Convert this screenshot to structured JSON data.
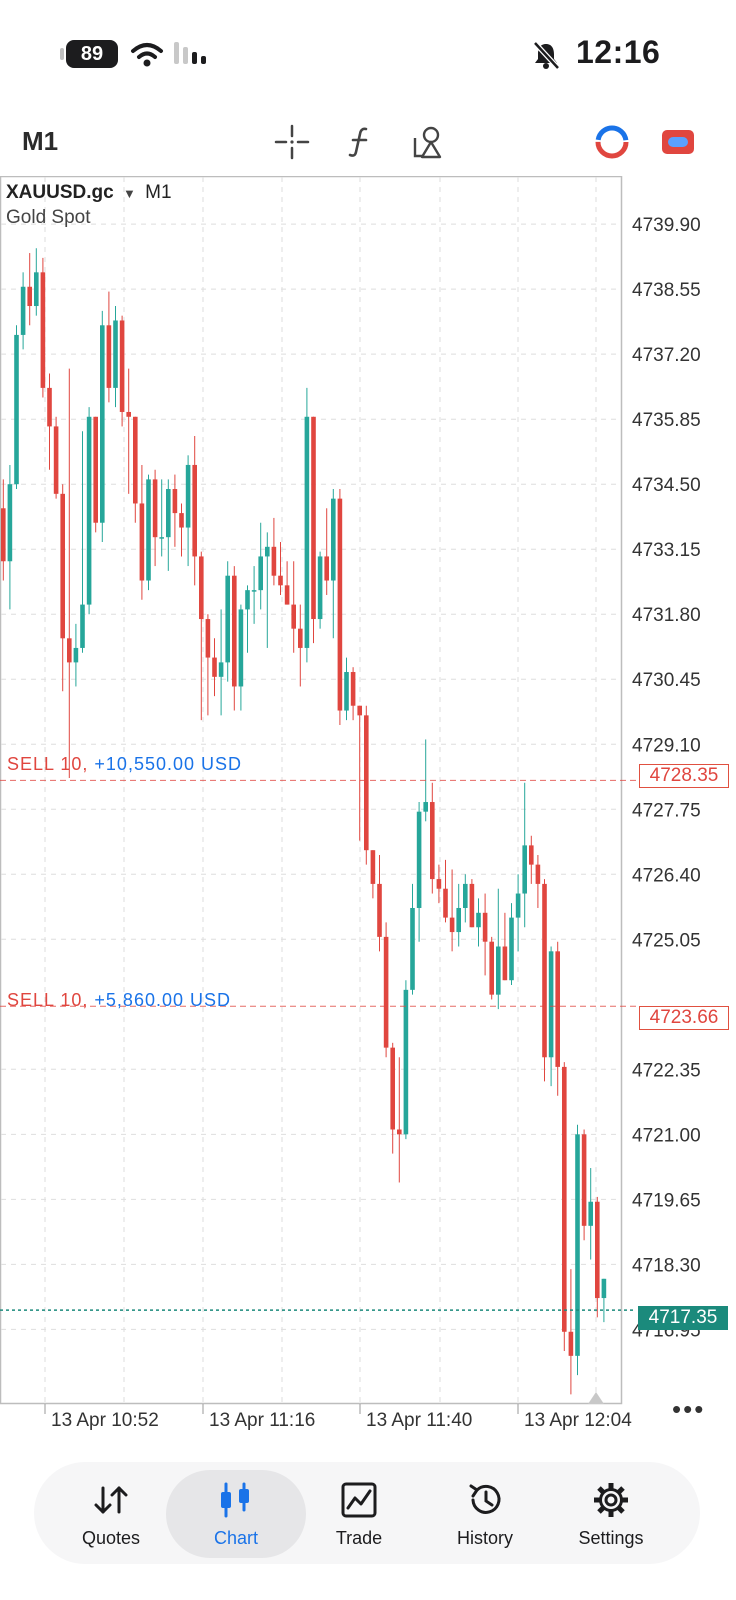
{
  "status_bar": {
    "battery": "89",
    "time": "12:16",
    "icons": [
      "wifi-icon",
      "cellular-signal-icon",
      "bell-muted-icon"
    ]
  },
  "toolbar": {
    "timeframe": "M1",
    "icons": [
      "crosshair-icon",
      "indicators-icon",
      "objects-icon",
      "app-logo-icon",
      "toggle-icon"
    ]
  },
  "chart": {
    "symbol": "XAUUSD.gc",
    "timeframe": "M1",
    "description": "Gold Spot",
    "colors": {
      "bull": "#26a69a",
      "bear": "#e0463f",
      "grid": "#dedede",
      "current": "#1b8a7c",
      "level": "#e0463f"
    },
    "current_price": "4717.35",
    "more_label": "•••"
  },
  "positions": [
    {
      "side": "SELL 10,",
      "pl": "+10,550.00 USD",
      "price": "4728.35"
    },
    {
      "side": "SELL 10,",
      "pl": "+5,860.00 USD",
      "price": "4723.66"
    }
  ],
  "chart_data": {
    "type": "candlestick",
    "y_ticks": [
      "4739.90",
      "4738.55",
      "4737.20",
      "4735.85",
      "4734.50",
      "4733.15",
      "4731.80",
      "4730.45",
      "4729.10",
      "4727.75",
      "4726.40",
      "4725.05",
      "4722.35",
      "4721.00",
      "4719.65",
      "4718.30",
      "4716.95"
    ],
    "x_ticks": [
      "13 Apr 10:52",
      "13 Apr 11:16",
      "13 Apr 11:40",
      "13 Apr 12:04"
    ],
    "ylim": [
      4715.4,
      4740.9
    ],
    "candles": [
      [
        4734.0,
        4734.6,
        4732.5,
        4732.9
      ],
      [
        4732.9,
        4734.9,
        4731.9,
        4734.5
      ],
      [
        4734.5,
        4737.8,
        4734.4,
        4737.6
      ],
      [
        4737.6,
        4738.9,
        4737.3,
        4738.6
      ],
      [
        4738.6,
        4739.3,
        4737.8,
        4738.2
      ],
      [
        4738.2,
        4739.4,
        4738.0,
        4738.9
      ],
      [
        4738.9,
        4739.2,
        4736.3,
        4736.5
      ],
      [
        4736.5,
        4736.8,
        4734.8,
        4735.7
      ],
      [
        4735.7,
        4735.9,
        4734.2,
        4734.3
      ],
      [
        4734.3,
        4734.5,
        4730.2,
        4731.3
      ],
      [
        4731.3,
        4736.9,
        4728.4,
        4730.8
      ],
      [
        4730.8,
        4731.6,
        4730.3,
        4731.1
      ],
      [
        4731.1,
        4735.6,
        4731.0,
        4732.0
      ],
      [
        4732.0,
        4736.1,
        4731.8,
        4735.9
      ],
      [
        4735.9,
        4735.9,
        4733.5,
        4733.7
      ],
      [
        4733.7,
        4738.1,
        4733.3,
        4737.8
      ],
      [
        4737.8,
        4738.5,
        4736.2,
        4736.5
      ],
      [
        4736.5,
        4738.2,
        4736.1,
        4737.9
      ],
      [
        4737.9,
        4738.0,
        4735.7,
        4736.0
      ],
      [
        4736.0,
        4736.9,
        4734.3,
        4735.9
      ],
      [
        4735.9,
        4735.9,
        4733.7,
        4734.1
      ],
      [
        4734.1,
        4734.9,
        4732.1,
        4732.5
      ],
      [
        4732.5,
        4734.7,
        4732.3,
        4734.6
      ],
      [
        4734.6,
        4734.8,
        4732.8,
        4733.4
      ],
      [
        4733.4,
        4734.6,
        4733.0,
        4733.4
      ],
      [
        4733.4,
        4734.6,
        4732.7,
        4734.4
      ],
      [
        4734.4,
        4734.7,
        4733.2,
        4733.9
      ],
      [
        4733.9,
        4734.1,
        4733.0,
        4733.6
      ],
      [
        4733.6,
        4735.1,
        4732.8,
        4734.9
      ],
      [
        4734.9,
        4735.5,
        4732.4,
        4733.0
      ],
      [
        4733.0,
        4733.1,
        4729.6,
        4731.7
      ],
      [
        4731.7,
        4731.8,
        4729.7,
        4730.9
      ],
      [
        4730.9,
        4731.3,
        4730.1,
        4730.5
      ],
      [
        4730.5,
        4731.9,
        4729.7,
        4730.8
      ],
      [
        4730.8,
        4732.9,
        4730.4,
        4732.6
      ],
      [
        4732.6,
        4732.8,
        4729.8,
        4730.3
      ],
      [
        4730.3,
        4732.0,
        4729.8,
        4731.9
      ],
      [
        4731.9,
        4732.4,
        4731.0,
        4732.3
      ],
      [
        4732.3,
        4732.8,
        4731.6,
        4732.3
      ],
      [
        4732.3,
        4733.7,
        4731.9,
        4733.0
      ],
      [
        4733.0,
        4733.5,
        4731.1,
        4733.2
      ],
      [
        4733.2,
        4733.8,
        4732.4,
        4732.6
      ],
      [
        4732.6,
        4733.3,
        4732.2,
        4732.4
      ],
      [
        4732.4,
        4732.9,
        4732.0,
        4732.0
      ],
      [
        4732.0,
        4732.9,
        4731.0,
        4731.5
      ],
      [
        4731.5,
        4732.0,
        4730.3,
        4731.1
      ],
      [
        4731.1,
        4736.5,
        4730.8,
        4735.9
      ],
      [
        4735.9,
        4735.9,
        4731.2,
        4731.7
      ],
      [
        4731.7,
        4733.1,
        4731.5,
        4733.0
      ],
      [
        4733.0,
        4734.0,
        4732.2,
        4732.5
      ],
      [
        4732.5,
        4734.4,
        4731.3,
        4734.2
      ],
      [
        4734.2,
        4734.4,
        4729.5,
        4729.8
      ],
      [
        4729.8,
        4730.9,
        4729.6,
        4730.6
      ],
      [
        4730.6,
        4730.7,
        4729.6,
        4729.9
      ],
      [
        4729.9,
        4729.9,
        4727.1,
        4729.7
      ],
      [
        4729.7,
        4729.9,
        4726.6,
        4726.9
      ],
      [
        4726.9,
        4726.9,
        4725.9,
        4726.2
      ],
      [
        4726.2,
        4726.8,
        4724.8,
        4725.1
      ],
      [
        4725.1,
        4725.4,
        4722.6,
        4722.8
      ],
      [
        4722.8,
        4722.9,
        4720.6,
        4721.1
      ],
      [
        4721.1,
        4722.6,
        4720.0,
        4721.0
      ],
      [
        4721.0,
        4724.2,
        4720.9,
        4724.0
      ],
      [
        4724.0,
        4726.2,
        4723.9,
        4725.7
      ],
      [
        4725.7,
        4727.9,
        4725.0,
        4727.7
      ],
      [
        4727.7,
        4729.2,
        4727.5,
        4727.9
      ],
      [
        4727.9,
        4728.3,
        4726.0,
        4726.3
      ],
      [
        4726.3,
        4726.6,
        4725.8,
        4726.1
      ],
      [
        4726.1,
        4726.7,
        4725.4,
        4725.5
      ],
      [
        4725.5,
        4726.5,
        4724.8,
        4725.2
      ],
      [
        4725.2,
        4726.2,
        4724.9,
        4725.7
      ],
      [
        4725.7,
        4726.4,
        4725.4,
        4726.2
      ],
      [
        4726.2,
        4726.3,
        4725.3,
        4725.3
      ],
      [
        4725.3,
        4725.9,
        4724.9,
        4725.6
      ],
      [
        4725.6,
        4726.0,
        4724.3,
        4725.0
      ],
      [
        4725.0,
        4725.1,
        4723.8,
        4723.9
      ],
      [
        4723.9,
        4726.1,
        4723.6,
        4724.9
      ],
      [
        4724.9,
        4725.6,
        4724.2,
        4724.2
      ],
      [
        4724.2,
        4725.8,
        4724.1,
        4725.5
      ],
      [
        4725.5,
        4726.4,
        4724.8,
        4726.0
      ],
      [
        4726.0,
        4728.3,
        4725.3,
        4727.0
      ],
      [
        4727.0,
        4727.2,
        4726.2,
        4726.6
      ],
      [
        4726.6,
        4726.8,
        4725.7,
        4726.2
      ],
      [
        4726.2,
        4726.3,
        4722.1,
        4722.6
      ],
      [
        4722.6,
        4724.9,
        4722.0,
        4724.8
      ],
      [
        4724.8,
        4725.0,
        4721.8,
        4722.4
      ],
      [
        4722.4,
        4722.5,
        4716.5,
        4716.9
      ],
      [
        4716.9,
        4718.2,
        4715.6,
        4716.4
      ],
      [
        4716.4,
        4721.2,
        4716.0,
        4721.0
      ],
      [
        4721.0,
        4721.1,
        4718.8,
        4719.1
      ],
      [
        4719.1,
        4720.3,
        4718.4,
        4719.6
      ],
      [
        4719.6,
        4719.7,
        4717.2,
        4717.6
      ],
      [
        4717.6,
        4718.0,
        4717.1,
        4718.0
      ]
    ]
  },
  "bottom_nav": {
    "items": [
      {
        "label": "Quotes",
        "icon": "quotes-icon"
      },
      {
        "label": "Chart",
        "icon": "chart-icon",
        "active": true
      },
      {
        "label": "Trade",
        "icon": "trade-icon"
      },
      {
        "label": "History",
        "icon": "history-icon"
      },
      {
        "label": "Settings",
        "icon": "settings-icon"
      }
    ]
  }
}
